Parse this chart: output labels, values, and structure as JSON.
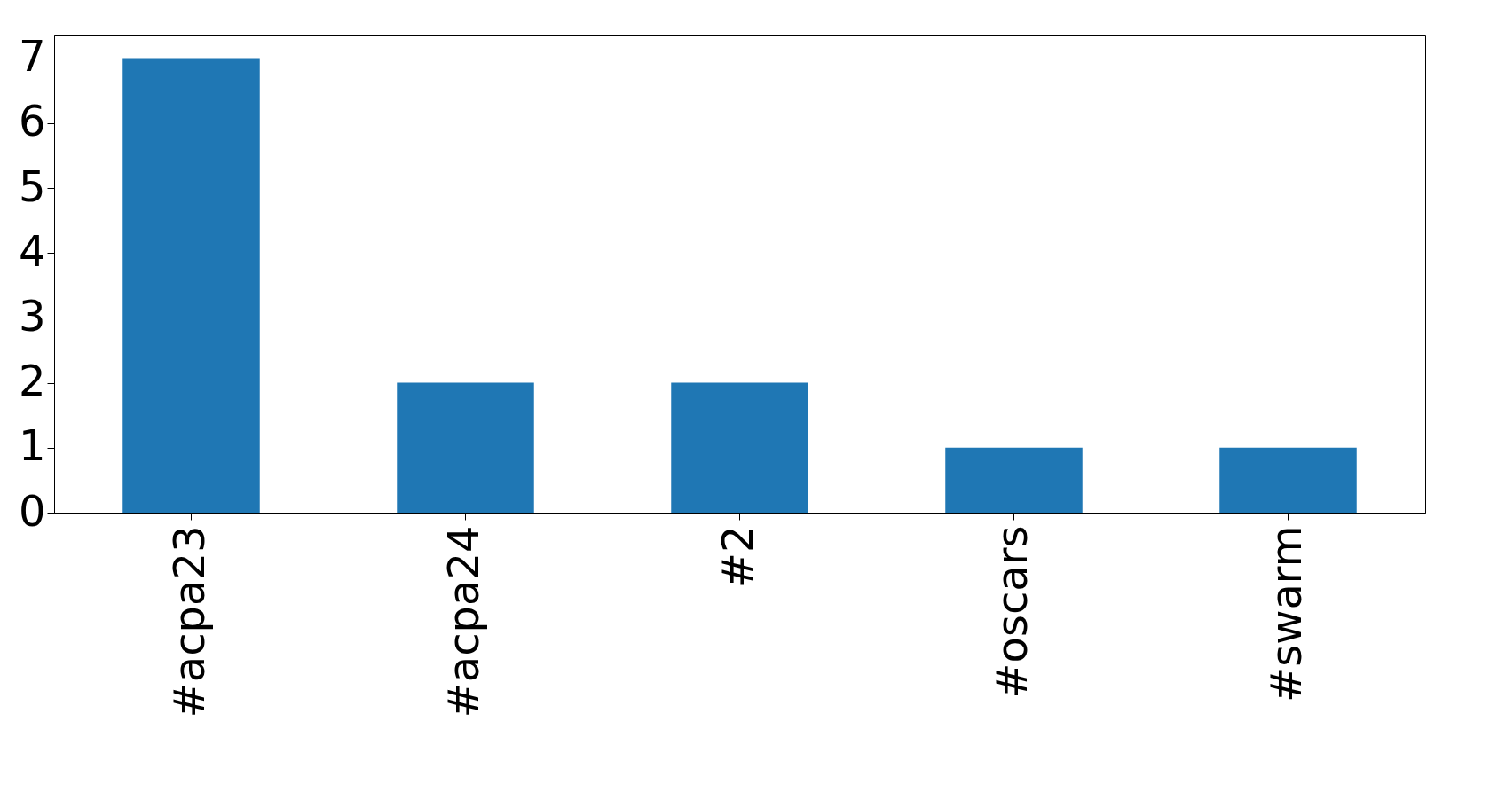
{
  "chart_data": {
    "type": "bar",
    "categories": [
      "#acpa23",
      "#acpa24",
      "#2",
      "#oscars",
      "#swarm"
    ],
    "values": [
      7,
      2,
      2,
      1,
      1
    ],
    "color": "#1f77b4",
    "ylim": [
      0,
      7.35
    ],
    "yticks": [
      0,
      1,
      2,
      3,
      4,
      5,
      6,
      7
    ],
    "grid": false
  }
}
